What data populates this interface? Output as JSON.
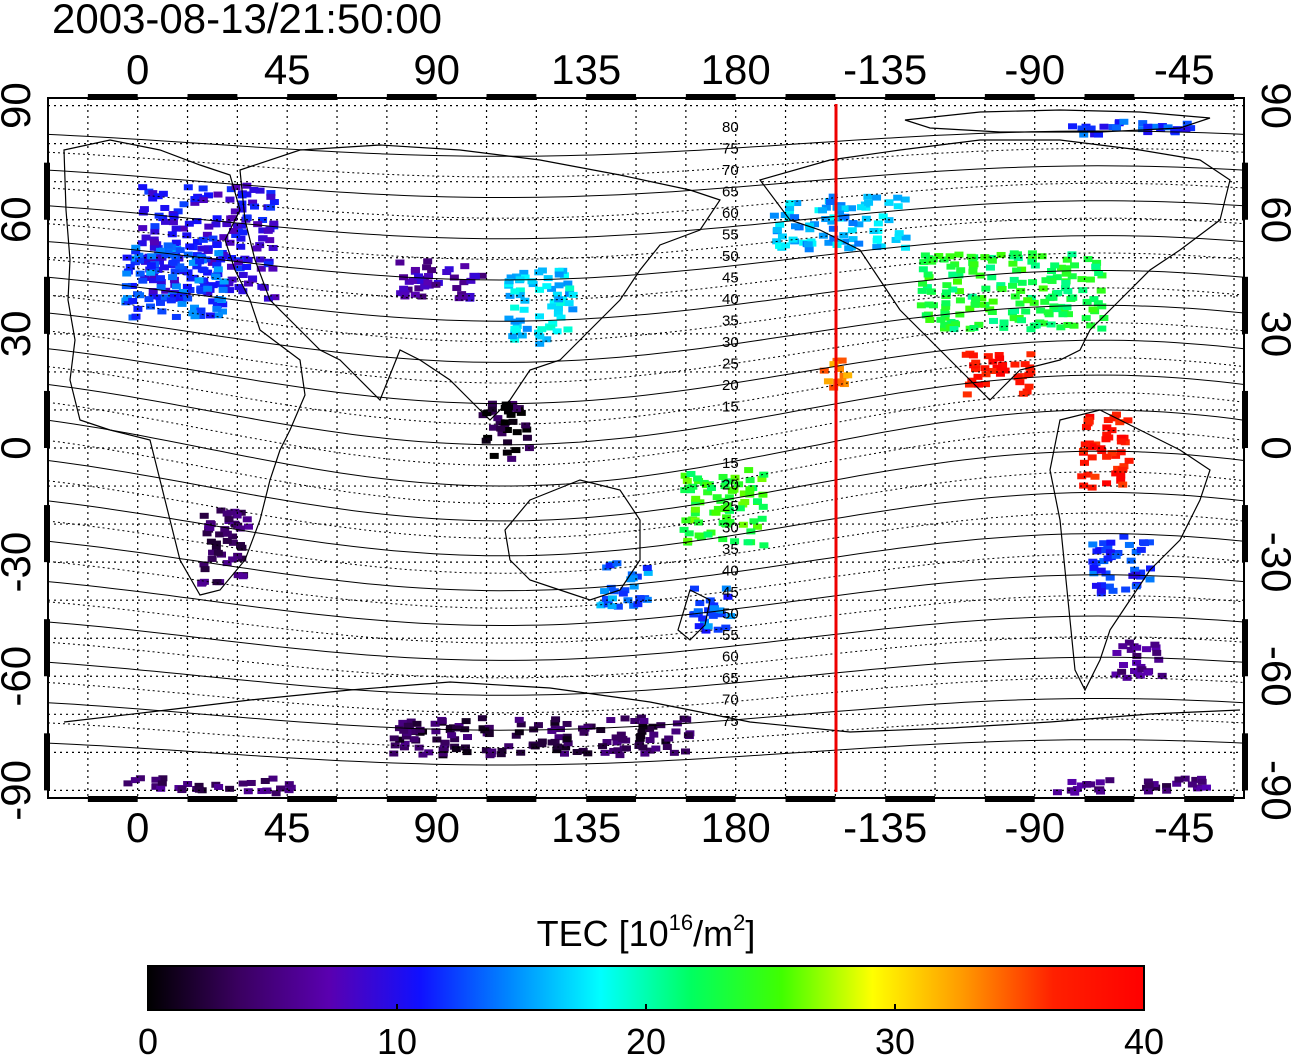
{
  "timestamp": "2003-08-13/21:50:00",
  "top_lon_labels": [
    "0",
    "45",
    "90",
    "135",
    "180",
    "-135",
    "-90",
    "-45"
  ],
  "bottom_lon_labels": [
    "0",
    "45",
    "90",
    "135",
    "180",
    "-135",
    "-90",
    "-45"
  ],
  "left_lat_labels": [
    "90",
    "60",
    "30",
    "0",
    "-30",
    "-60",
    "-90"
  ],
  "right_lat_labels": [
    "90",
    "60",
    "30",
    "0",
    "-30",
    "-60",
    "-90"
  ],
  "contour_labels_north": [
    "80",
    "75",
    "70",
    "65",
    "60",
    "55",
    "50",
    "45",
    "40",
    "35",
    "30",
    "25",
    "20",
    "15"
  ],
  "contour_labels_south": [
    "15",
    "20",
    "25",
    "30",
    "35",
    "40",
    "45",
    "50",
    "55",
    "60",
    "65",
    "70",
    "75"
  ],
  "colorbar": {
    "title_prefix": "TEC  [10",
    "title_sup1": "16",
    "title_mid": "/m",
    "title_sup2": "2",
    "title_suffix": "]",
    "min": 0,
    "max": 40,
    "tick_labels": [
      "0",
      "10",
      "20",
      "30",
      "40"
    ],
    "stops": [
      "#000000",
      "#3a0060",
      "#5a00b0",
      "#1010ff",
      "#0088ff",
      "#00ffff",
      "#00ff60",
      "#40ff00",
      "#ffff00",
      "#ff9900",
      "#ff2000",
      "#ff0000"
    ]
  },
  "terminator_color": "#ee0000",
  "tec_regions": [
    {
      "lon": 20,
      "lat": 55,
      "w": 40,
      "h": 30,
      "tec": 10
    },
    {
      "lon": 10,
      "lat": 45,
      "w": 30,
      "h": 20,
      "tec": 13
    },
    {
      "lon": 120,
      "lat": 38,
      "w": 20,
      "h": 20,
      "tec": 17
    },
    {
      "lon": 145,
      "lat": -35,
      "w": 15,
      "h": 12,
      "tec": 14
    },
    {
      "lon": 172,
      "lat": -42,
      "w": 12,
      "h": 12,
      "tec": 13
    },
    {
      "lon": 210,
      "lat": 60,
      "w": 40,
      "h": 14,
      "tec": 16
    },
    {
      "lon": 262,
      "lat": 42,
      "w": 55,
      "h": 20,
      "tec": 23
    },
    {
      "lon": 258,
      "lat": 20,
      "w": 20,
      "h": 12,
      "tec": 38
    },
    {
      "lon": 290,
      "lat": 0,
      "w": 15,
      "h": 20,
      "tec": 38
    },
    {
      "lon": 295,
      "lat": -30,
      "w": 18,
      "h": 15,
      "tec": 12
    },
    {
      "lon": 300,
      "lat": -55,
      "w": 15,
      "h": 10,
      "tec": 6
    },
    {
      "lon": 210,
      "lat": 20,
      "w": 10,
      "h": 8,
      "tec": 33
    },
    {
      "lon": 175,
      "lat": -15,
      "w": 25,
      "h": 20,
      "tec": 24
    },
    {
      "lon": 25,
      "lat": -25,
      "w": 15,
      "h": 20,
      "tec": 4
    },
    {
      "lon": 120,
      "lat": -75,
      "w": 90,
      "h": 10,
      "tec": 3
    },
    {
      "lon": 20,
      "lat": -88,
      "w": 50,
      "h": 4,
      "tec": 4
    },
    {
      "lon": 300,
      "lat": -88,
      "w": 50,
      "h": 4,
      "tec": 5
    },
    {
      "lon": 90,
      "lat": 45,
      "w": 25,
      "h": 10,
      "tec": 7
    },
    {
      "lon": 110,
      "lat": 5,
      "w": 15,
      "h": 15,
      "tec": 2
    },
    {
      "lon": 300,
      "lat": 85,
      "w": 40,
      "h": 4,
      "tec": 12
    }
  ]
}
